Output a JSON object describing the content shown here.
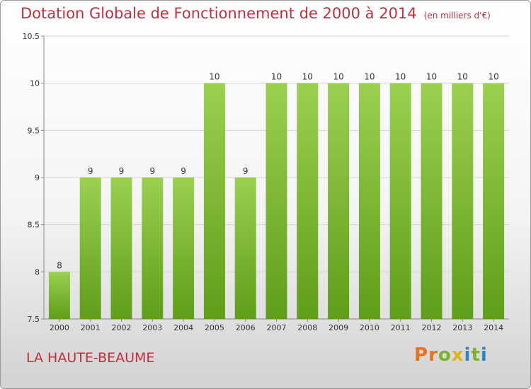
{
  "header": {
    "title": "Dotation Globale de Fonctionnement de 2000 à 2014",
    "unit": "(en milliers d'€)"
  },
  "footer": {
    "commune": "LA HAUTE-BEAUME",
    "logo_letters": [
      "P",
      "r",
      "o",
      "x",
      "i",
      "t",
      "i"
    ]
  },
  "colors": {
    "title": "#c22f3c",
    "bar_top": "#9bd050",
    "bar_bottom": "#5f9e19",
    "logo": [
      "#e8731a",
      "#e8731a",
      "#7cb32b",
      "#e0b414",
      "#2f86c6",
      "#7cb32b",
      "#2f86c6"
    ]
  },
  "chart_data": {
    "type": "bar",
    "title": "Dotation Globale de Fonctionnement de 2000 à 2014",
    "unit": "(en milliers d'€)",
    "xlabel": "",
    "ylabel": "",
    "categories": [
      "2000",
      "2001",
      "2002",
      "2003",
      "2004",
      "2005",
      "2006",
      "2007",
      "2008",
      "2009",
      "2010",
      "2011",
      "2012",
      "2013",
      "2014"
    ],
    "values": [
      8,
      9,
      9,
      9,
      9,
      10,
      9,
      10,
      10,
      10,
      10,
      10,
      10,
      10,
      10
    ],
    "data_labels": [
      "8",
      "9",
      "9",
      "9",
      "9",
      "10",
      "9",
      "10",
      "10",
      "10",
      "10",
      "10",
      "10",
      "10",
      "10"
    ],
    "ylim": [
      7.5,
      10.5
    ],
    "yticks": [
      7.5,
      8,
      8.5,
      9,
      9.5,
      10,
      10.5
    ],
    "ytick_labels": [
      "7.5",
      "8",
      "8.5",
      "9",
      "9.5",
      "10",
      "10.5"
    ],
    "grid": true,
    "legend": "none"
  }
}
